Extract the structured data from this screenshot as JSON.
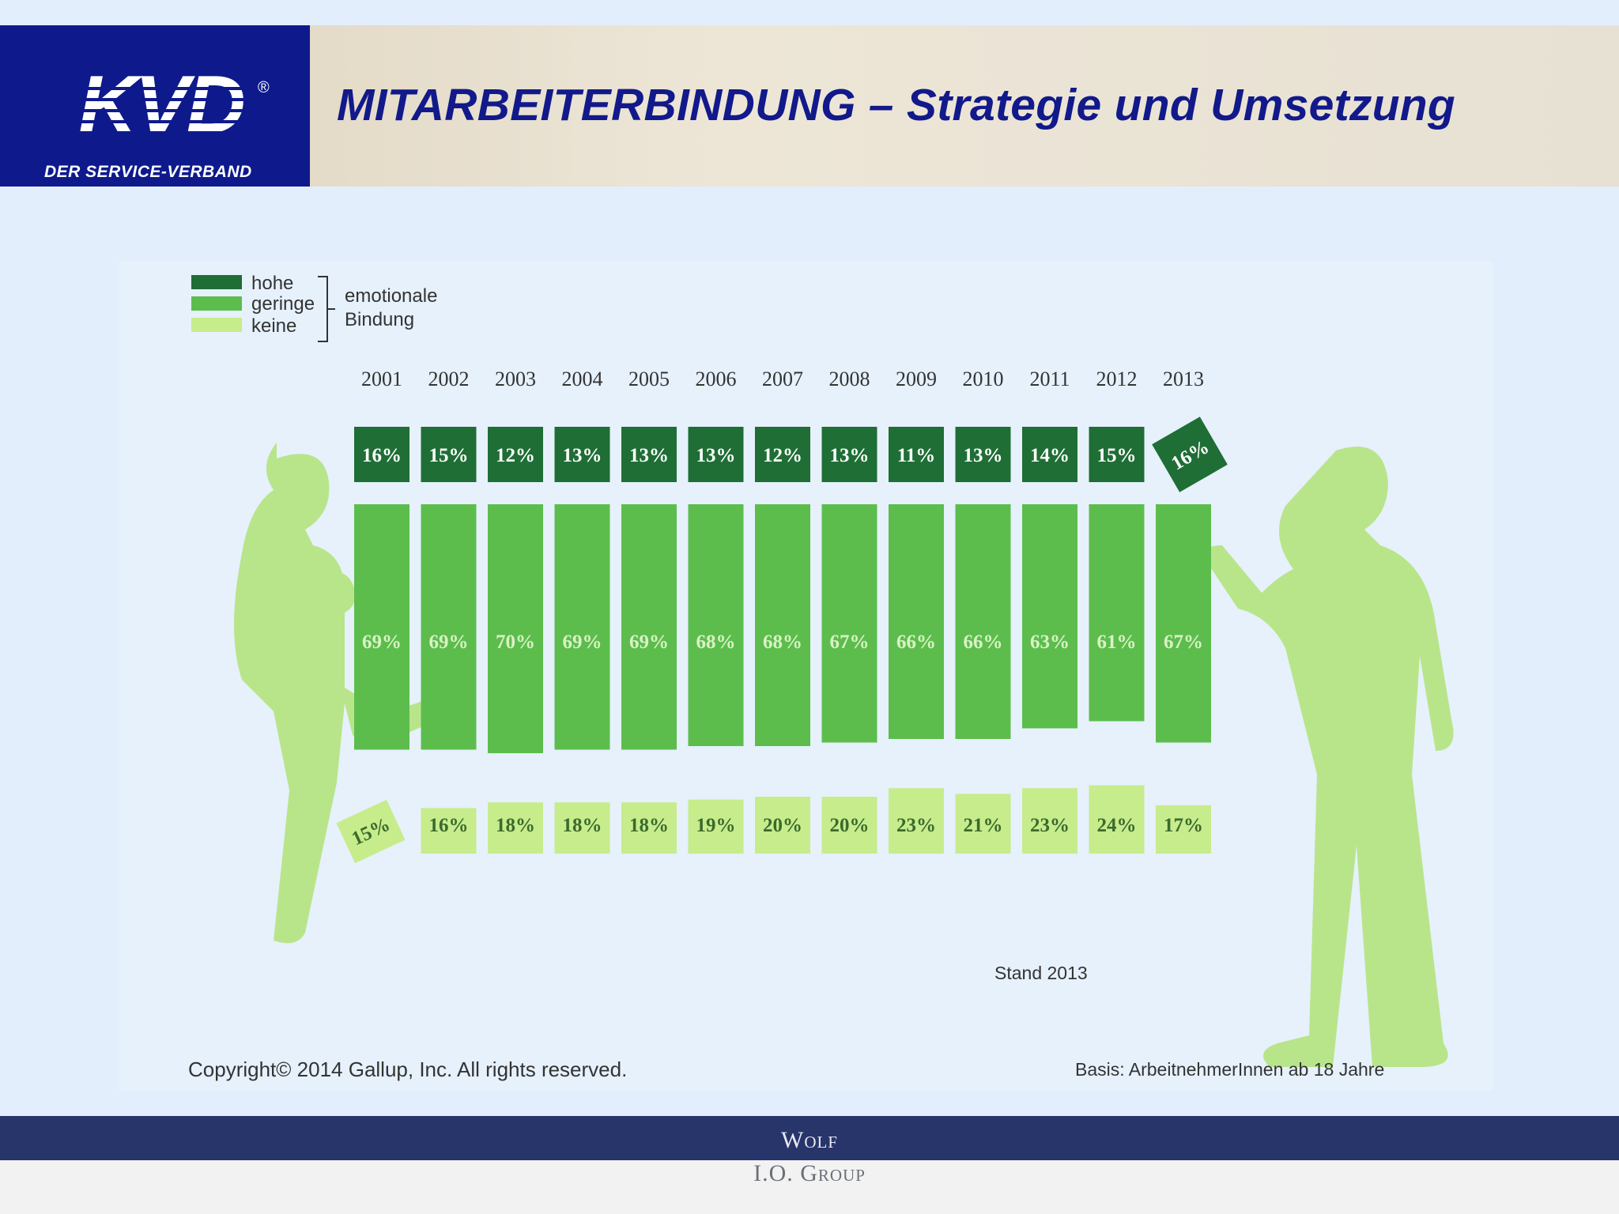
{
  "header": {
    "logo_text": "KVD",
    "logo_registered": "®",
    "logo_tagline": "DER SERVICE-VERBAND",
    "title": "MITARBEITERBINDUNG – Strategie und Umsetzung"
  },
  "colors": {
    "high": "#1f6e35",
    "low": "#5cbd4d",
    "none": "#c7ec8c",
    "figure": "#b8e58a",
    "title": "#12198a",
    "logo_bg": "#0e1a8c",
    "footer": "#28356a"
  },
  "legend": {
    "items": [
      "hohe",
      "geringe",
      "keine"
    ],
    "group_label_line1": "emotionale",
    "group_label_line2": "Bindung"
  },
  "chart_data": {
    "type": "bar",
    "categories": [
      "2001",
      "2002",
      "2003",
      "2004",
      "2005",
      "2006",
      "2007",
      "2008",
      "2009",
      "2010",
      "2011",
      "2012",
      "2013"
    ],
    "series": [
      {
        "name": "hohe",
        "values": [
          16,
          15,
          12,
          13,
          13,
          13,
          12,
          13,
          11,
          13,
          14,
          15,
          16
        ]
      },
      {
        "name": "geringe",
        "values": [
          69,
          69,
          70,
          69,
          69,
          68,
          68,
          67,
          66,
          66,
          63,
          61,
          67
        ]
      },
      {
        "name": "keine",
        "values": [
          15,
          16,
          18,
          18,
          18,
          19,
          20,
          20,
          23,
          21,
          23,
          24,
          17
        ]
      }
    ],
    "value_suffix": "%",
    "legend_position": "top-left"
  },
  "notes": {
    "stand": "Stand 2013",
    "copyright": "Copyright© 2014 Gallup, Inc. All rights reserved.",
    "basis": "Basis: ArbeitnehmerInnen ab 18 Jahre"
  },
  "footer": {
    "line1": "Wolf",
    "line2": "I.O. Group"
  }
}
